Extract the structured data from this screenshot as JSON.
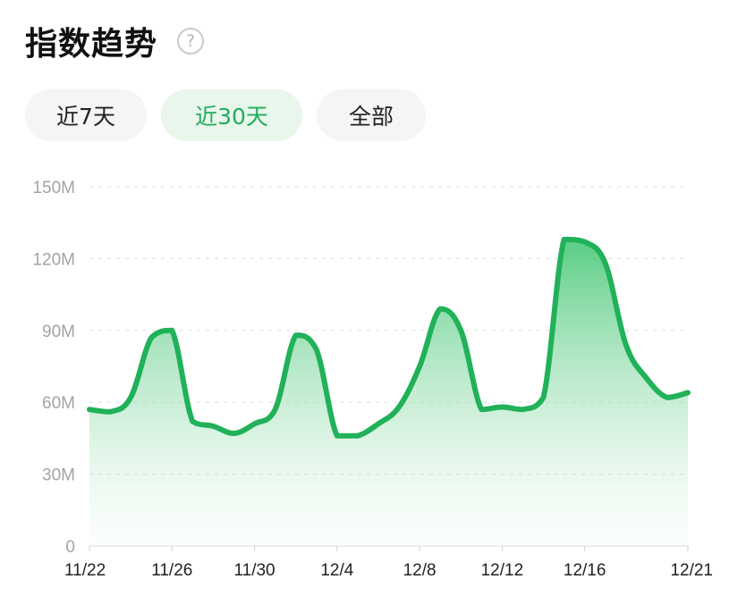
{
  "header": {
    "title": "指数趋势",
    "help_icon": "question-circle-icon",
    "help_glyph": "?"
  },
  "tabs": [
    {
      "label": "近7天",
      "active": false
    },
    {
      "label": "近30天",
      "active": true
    },
    {
      "label": "全部",
      "active": false
    }
  ],
  "colors": {
    "accent": "#1fae5b",
    "line": "#21b159",
    "tab_bg": "#f5f5f5",
    "tab_active_bg": "#e8f6ec"
  },
  "chart_data": {
    "type": "area",
    "title": "",
    "xlabel": "",
    "ylabel": "",
    "ylim": [
      0,
      150
    ],
    "y_ticks": [
      "0",
      "30M",
      "60M",
      "90M",
      "120M",
      "150M"
    ],
    "y_tick_values": [
      0,
      30,
      60,
      90,
      120,
      150
    ],
    "x_ticks": [
      "11/22",
      "11/26",
      "11/30",
      "12/4",
      "12/8",
      "12/12",
      "12/16",
      "12/21"
    ],
    "grid": true,
    "legend": "none",
    "units": "M",
    "x": [
      "11/22",
      "11/23",
      "11/24",
      "11/25",
      "11/26",
      "11/27",
      "11/28",
      "11/29",
      "11/30",
      "12/1",
      "12/2",
      "12/3",
      "12/4",
      "12/5",
      "12/6",
      "12/7",
      "12/8",
      "12/9",
      "12/10",
      "12/11",
      "12/12",
      "12/13",
      "12/14",
      "12/15",
      "12/16",
      "12/17",
      "12/18",
      "12/19",
      "12/20",
      "12/21"
    ],
    "series": [
      {
        "values": [
          57,
          56,
          62,
          87,
          90,
          52,
          50,
          47,
          51,
          57,
          88,
          82,
          46,
          46,
          51,
          58,
          75,
          99,
          90,
          57,
          58,
          57,
          62,
          128,
          127,
          118,
          84,
          70,
          62,
          64
        ]
      }
    ]
  }
}
